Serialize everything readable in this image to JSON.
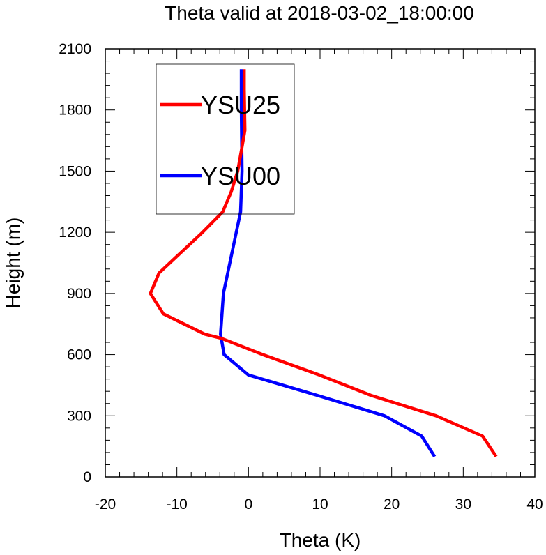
{
  "chart_data": {
    "type": "line",
    "title": "Theta valid at 2018-03-02_18:00:00",
    "xlabel": "Theta (K)",
    "ylabel": "Height (m)",
    "xlim": [
      -20,
      40
    ],
    "ylim": [
      0,
      2100
    ],
    "xticks": [
      -20,
      -10,
      0,
      10,
      20,
      30,
      40
    ],
    "yticks": [
      0,
      300,
      600,
      900,
      1200,
      1500,
      1800,
      2100
    ],
    "xtick_labels": [
      "-20",
      "-10",
      "0",
      "10",
      "20",
      "30",
      "40"
    ],
    "ytick_labels": [
      "0",
      "300",
      "600",
      "900",
      "1200",
      "1500",
      "1800",
      "2100"
    ],
    "legend_position": "top-left",
    "grid": false,
    "series": [
      {
        "name": "YSU25",
        "color": "#ff0000",
        "x": [
          34.6,
          32.7,
          26.2,
          17.1,
          9.9,
          2.0,
          -3.8,
          -6.1,
          -11.9,
          -13.7,
          -12.5,
          -6.4,
          -3.6,
          -2.4,
          -1.5,
          -1.0,
          -0.5,
          -0.6,
          -0.6
        ],
        "y": [
          100,
          200,
          300,
          400,
          500,
          600,
          680,
          700,
          800,
          900,
          1000,
          1200,
          1300,
          1400,
          1500,
          1600,
          1700,
          1900,
          2000
        ]
      },
      {
        "name": "YSU00",
        "color": "#0000ff",
        "x": [
          26.0,
          24.2,
          19.0,
          9.6,
          0.0,
          -3.4,
          -3.9,
          -3.5,
          -1.1,
          -0.9,
          -1.0,
          -1.0
        ],
        "y": [
          100,
          200,
          300,
          400,
          500,
          600,
          700,
          900,
          1300,
          1500,
          1800,
          2000
        ]
      }
    ]
  }
}
